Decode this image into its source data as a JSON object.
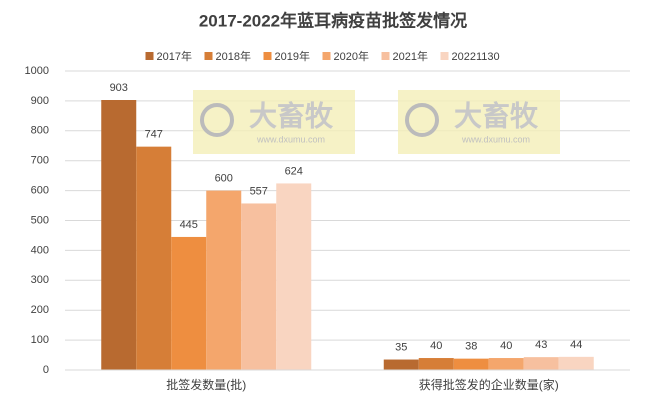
{
  "chart_data": {
    "type": "bar",
    "title": "2017-2022年蓝耳病疫苗批签发情况",
    "categories": [
      "批签发数量(批)",
      "获得批签发的企业数量(家)"
    ],
    "series": [
      {
        "name": "2017年",
        "color": "#b86a30",
        "values": [
          903,
          35
        ]
      },
      {
        "name": "2018年",
        "color": "#d67e37",
        "values": [
          747,
          40
        ]
      },
      {
        "name": "2019年",
        "color": "#ee8e40",
        "values": [
          445,
          38
        ]
      },
      {
        "name": "2020年",
        "color": "#f4a66c",
        "values": [
          600,
          40
        ]
      },
      {
        "name": "2021年",
        "color": "#f7c09f",
        "values": [
          557,
          43
        ]
      },
      {
        "name": "20221130",
        "color": "#f9d5c1",
        "values": [
          624,
          44
        ]
      }
    ],
    "ylim": [
      0,
      1000
    ],
    "yticks": [
      0,
      100,
      200,
      300,
      400,
      500,
      600,
      700,
      800,
      900,
      1000
    ],
    "grid": true,
    "legend": "top",
    "watermark": [
      "大畜牧",
      "www.dxumu.com"
    ]
  }
}
